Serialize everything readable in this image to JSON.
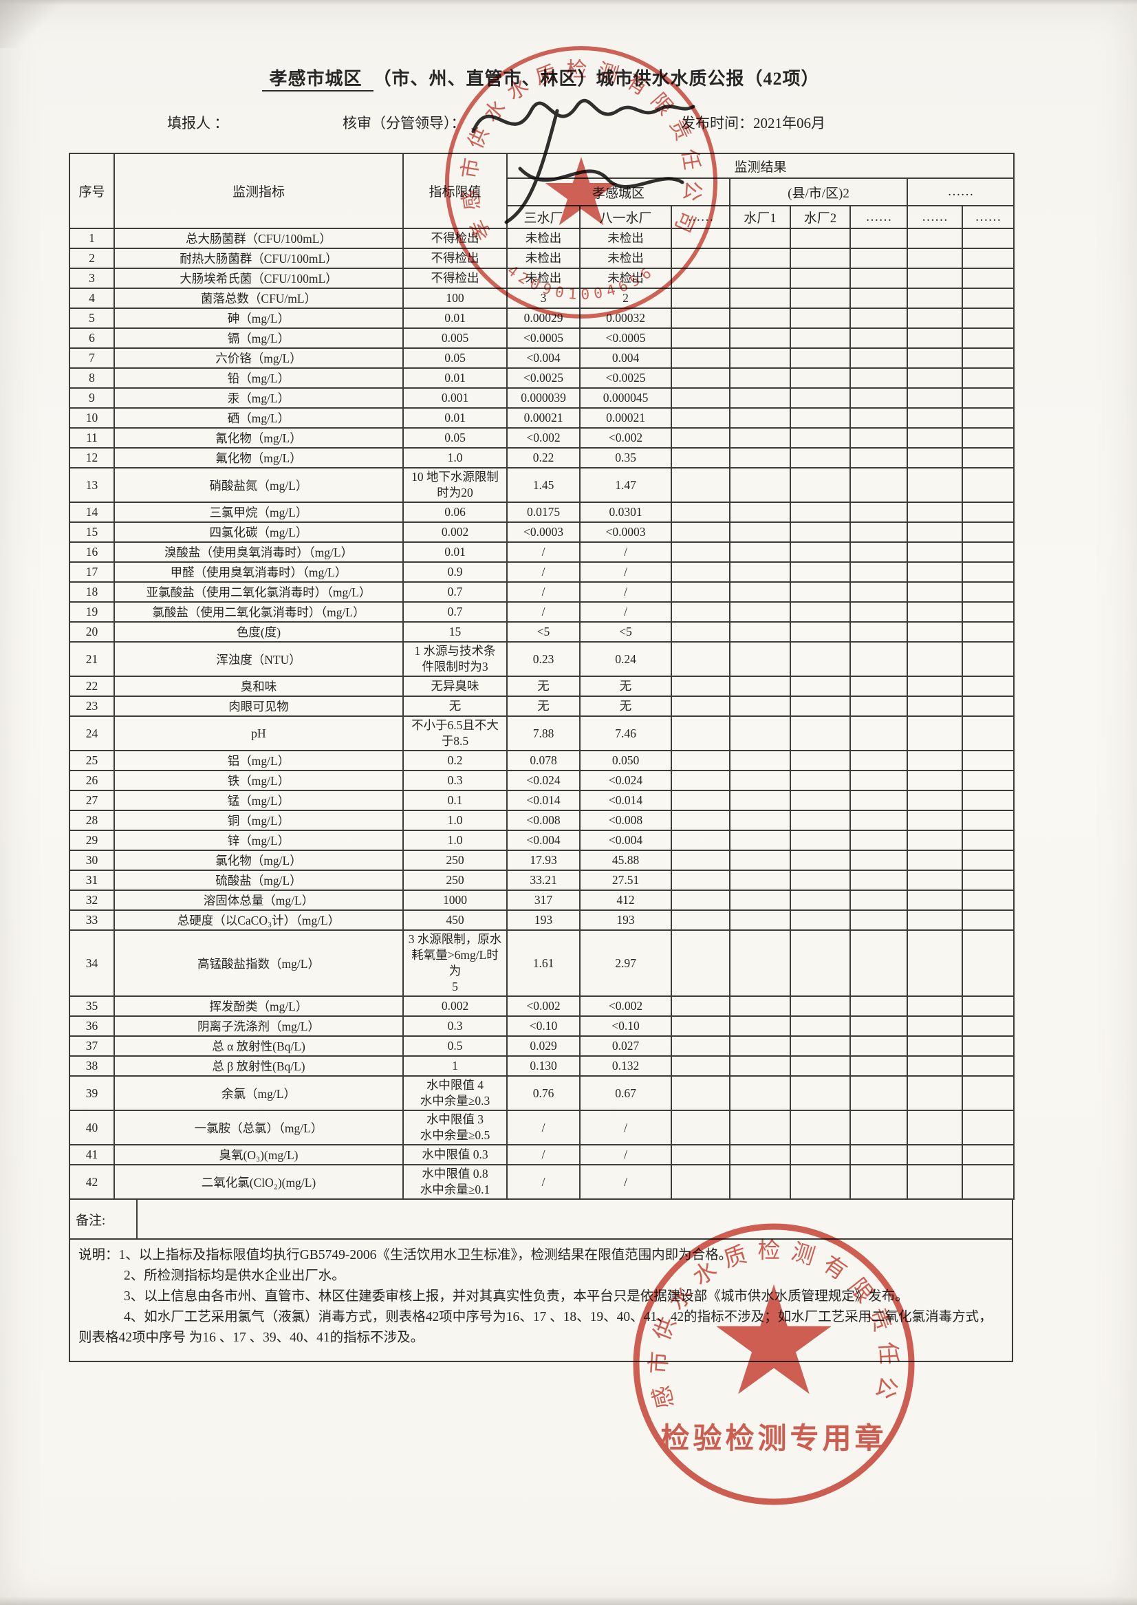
{
  "page": {
    "title": {
      "region": "孝感市城区",
      "rest": "（市、州、直管市、林区）城市供水水质公报（42项）"
    },
    "meta": {
      "filler": "填报人 ：",
      "reviewer": "核审（分管领导）：",
      "publish": "发布时间：2021年06月"
    }
  },
  "table": {
    "head": {
      "seq": "序号",
      "indicator": "监测指标",
      "limit": "指标限值",
      "result": "监测结果",
      "group_city": "孝感城区",
      "group_county": "(县/市/区)2",
      "group_more": "……",
      "plants": [
        "三水厂",
        "八一水厂",
        "……",
        "水厂1",
        "水厂2",
        "……",
        "……",
        "……"
      ]
    },
    "rows": [
      {
        "no": "1",
        "name": "总大肠菌群（CFU/100mL）",
        "limit": "不得检出",
        "v1": "未检出",
        "v2": "未检出"
      },
      {
        "no": "2",
        "name": "耐热大肠菌群（CFU/100mL）",
        "limit": "不得检出",
        "v1": "未检出",
        "v2": "未检出"
      },
      {
        "no": "3",
        "name": "大肠埃希氏菌（CFU/100mL）",
        "limit": "不得检出",
        "v1": "未检出",
        "v2": "未检出"
      },
      {
        "no": "4",
        "name": "菌落总数（CFU/mL）",
        "limit": "100",
        "v1": "3",
        "v2": "2"
      },
      {
        "no": "5",
        "name": "砷（mg/L）",
        "limit": "0.01",
        "v1": "0.00029",
        "v2": "0.00032"
      },
      {
        "no": "6",
        "name": "镉（mg/L）",
        "limit": "0.005",
        "v1": "<0.0005",
        "v2": "<0.0005"
      },
      {
        "no": "7",
        "name": "六价铬（mg/L）",
        "limit": "0.05",
        "v1": "<0.004",
        "v2": "0.004"
      },
      {
        "no": "8",
        "name": "铅（mg/L）",
        "limit": "0.01",
        "v1": "<0.0025",
        "v2": "<0.0025"
      },
      {
        "no": "9",
        "name": "汞（mg/L）",
        "limit": "0.001",
        "v1": "0.000039",
        "v2": "0.000045"
      },
      {
        "no": "10",
        "name": "硒（mg/L）",
        "limit": "0.01",
        "v1": "0.00021",
        "v2": "0.00021"
      },
      {
        "no": "11",
        "name": "氰化物（mg/L）",
        "limit": "0.05",
        "v1": "<0.002",
        "v2": "<0.002"
      },
      {
        "no": "12",
        "name": "氟化物（mg/L）",
        "limit": "1.0",
        "v1": "0.22",
        "v2": "0.35"
      },
      {
        "no": "13",
        "name": "硝酸盐氮（mg/L）",
        "limit": "10 地下水源限制\n时为20",
        "v1": "1.45",
        "v2": "1.47"
      },
      {
        "no": "14",
        "name": "三氯甲烷（mg/L）",
        "limit": "0.06",
        "v1": "0.0175",
        "v2": "0.0301"
      },
      {
        "no": "15",
        "name": "四氯化碳（mg/L）",
        "limit": "0.002",
        "v1": "<0.0003",
        "v2": "<0.0003"
      },
      {
        "no": "16",
        "name": "溴酸盐（使用臭氧消毒时）（mg/L）",
        "limit": "0.01",
        "v1": "/",
        "v2": "/"
      },
      {
        "no": "17",
        "name": "甲醛（使用臭氧消毒时）（mg/L）",
        "limit": "0.9",
        "v1": "/",
        "v2": "/"
      },
      {
        "no": "18",
        "name": "亚氯酸盐（使用二氧化氯消毒时）（mg/L）",
        "limit": "0.7",
        "v1": "/",
        "v2": "/"
      },
      {
        "no": "19",
        "name": "氯酸盐（使用二氧化氯消毒时）（mg/L）",
        "limit": "0.7",
        "v1": "/",
        "v2": "/"
      },
      {
        "no": "20",
        "name": "色度(度)",
        "limit": "15",
        "v1": "<5",
        "v2": "<5"
      },
      {
        "no": "21",
        "name": "浑浊度（NTU）",
        "limit": "1  水源与技术条\n件限制时为3",
        "v1": "0.23",
        "v2": "0.24"
      },
      {
        "no": "22",
        "name": "臭和味",
        "limit": "无异臭味",
        "v1": "无",
        "v2": "无"
      },
      {
        "no": "23",
        "name": "肉眼可见物",
        "limit": "无",
        "v1": "无",
        "v2": "无"
      },
      {
        "no": "24",
        "name": "pH",
        "limit": "不小于6.5且不大\n于8.5",
        "v1": "7.88",
        "v2": "7.46"
      },
      {
        "no": "25",
        "name": "铝（mg/L）",
        "limit": "0.2",
        "v1": "0.078",
        "v2": "0.050"
      },
      {
        "no": "26",
        "name": "铁（mg/L）",
        "limit": "0.3",
        "v1": "<0.024",
        "v2": "<0.024"
      },
      {
        "no": "27",
        "name": "锰（mg/L）",
        "limit": "0.1",
        "v1": "<0.014",
        "v2": "<0.014"
      },
      {
        "no": "28",
        "name": "铜（mg/L）",
        "limit": "1.0",
        "v1": "<0.008",
        "v2": "<0.008"
      },
      {
        "no": "29",
        "name": "锌（mg/L）",
        "limit": "1.0",
        "v1": "<0.004",
        "v2": "<0.004"
      },
      {
        "no": "30",
        "name": "氯化物（mg/L）",
        "limit": "250",
        "v1": "17.93",
        "v2": "45.88"
      },
      {
        "no": "31",
        "name": "硫酸盐（mg/L）",
        "limit": "250",
        "v1": "33.21",
        "v2": "27.51"
      },
      {
        "no": "32",
        "name": "溶固体总量（mg/L）",
        "limit": "1000",
        "v1": "317",
        "v2": "412"
      },
      {
        "no": "33",
        "name": "总硬度（以CaCO₃计）（mg/L）",
        "limit": "450",
        "v1": "193",
        "v2": "193"
      },
      {
        "no": "34",
        "name": "高锰酸盐指数（mg/L）",
        "limit": "3 水源限制，原水\n耗氧量>6mg/L时为\n5",
        "v1": "1.61",
        "v2": "2.97"
      },
      {
        "no": "35",
        "name": "挥发酚类（mg/L）",
        "limit": "0.002",
        "v1": "<0.002",
        "v2": "<0.002"
      },
      {
        "no": "36",
        "name": "阴离子洗涤剂（mg/L）",
        "limit": "0.3",
        "v1": "<0.10",
        "v2": "<0.10"
      },
      {
        "no": "37",
        "name": "总 α 放射性(Bq/L)",
        "limit": "0.5",
        "v1": "0.029",
        "v2": "0.027"
      },
      {
        "no": "38",
        "name": "总 β 放射性(Bq/L)",
        "limit": "1",
        "v1": "0.130",
        "v2": "0.132"
      },
      {
        "no": "39",
        "name": "余氯（mg/L）",
        "limit": "水中限值 4\n水中余量≥0.3",
        "v1": "0.76",
        "v2": "0.67"
      },
      {
        "no": "40",
        "name": "一氯胺（总氯）（mg/L）",
        "limit": "水中限值 3\n水中余量≥0.5",
        "v1": "/",
        "v2": "/"
      },
      {
        "no": "41",
        "name": "臭氧(O₃)(mg/L)",
        "limit": "水中限值 0.3",
        "v1": "/",
        "v2": "/"
      },
      {
        "no": "42",
        "name": "二氧化氯(ClO₂)(mg/L)",
        "limit": "水中限值 0.8\n水中余量≥0.1",
        "v1": "/",
        "v2": "/"
      }
    ],
    "remark_label": "备注:"
  },
  "notes": {
    "label": "说明：",
    "items": [
      "1、以上指标及指标限值均执行GB5749-2006《生活饮用水卫生标准》，检测结果在限值范围内即为合格。",
      "2、所检测指标均是供水企业出厂水。",
      "3、以上信息由各市州、直管市、林区住建委审核上报，并对其真实性负责，本平台只是依据建设部《城市供水水质管理规定》发布。",
      "4、如水厂工艺采用氯气（液氯）消毒方式，则表格42项中序号为16、17 、18、19、40、41、42的指标不涉及；如水厂工艺采用二氧化氯消毒方式，则表格42项中序号 为16 、17 、39、40、41的指标不涉及。"
    ]
  },
  "stamps": {
    "top": {
      "company": "孝感市供水水质检测有限责任公司",
      "number": "420901004656"
    },
    "bottom": {
      "company": "孝感市供水水质检测有限责任公司",
      "title": "检验检测专用章"
    }
  },
  "colors": {
    "stamp_red": "#c83a2c",
    "ink": "#262626",
    "table_border": "#3d3c39",
    "paper": "#f9f7f2"
  }
}
